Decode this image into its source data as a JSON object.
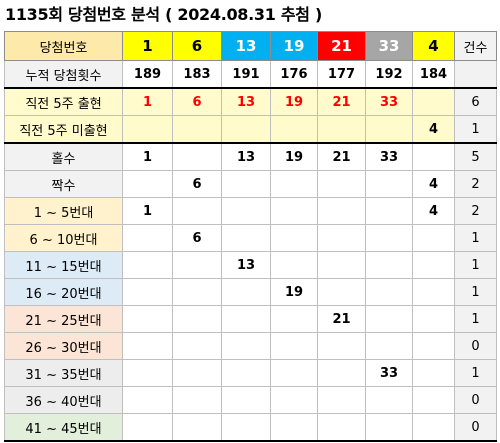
{
  "title": "1135회 당첨번호 분석 ( 2024.08.31 추첨 )",
  "header": {
    "label": "당첨번호",
    "numbers": [
      "1",
      "6",
      "13",
      "19",
      "21",
      "33",
      "4"
    ],
    "count_label": "건수"
  },
  "cumulative": {
    "label": "누적 당첨횟수",
    "values": [
      "189",
      "183",
      "191",
      "176",
      "177",
      "192",
      "184"
    ]
  },
  "rows": [
    {
      "label": "직전 5주 출현",
      "cells": [
        "1",
        "6",
        "13",
        "19",
        "21",
        "33",
        ""
      ],
      "count": "6"
    },
    {
      "label": "직전 5주 미출현",
      "cells": [
        "",
        "",
        "",
        "",
        "",
        "",
        "4"
      ],
      "count": "1"
    },
    {
      "label": "홀수",
      "cells": [
        "1",
        "",
        "13",
        "19",
        "21",
        "33",
        ""
      ],
      "count": "5"
    },
    {
      "label": "짝수",
      "cells": [
        "",
        "6",
        "",
        "",
        "",
        "",
        "4"
      ],
      "count": "2"
    },
    {
      "label": "1 ~ 5번대",
      "cells": [
        "1",
        "",
        "",
        "",
        "",
        "",
        "4"
      ],
      "count": "2"
    },
    {
      "label": "6 ~ 10번대",
      "cells": [
        "",
        "6",
        "",
        "",
        "",
        "",
        ""
      ],
      "count": "1"
    },
    {
      "label": "11 ~ 15번대",
      "cells": [
        "",
        "",
        "13",
        "",
        "",
        "",
        ""
      ],
      "count": "1"
    },
    {
      "label": "16 ~ 20번대",
      "cells": [
        "",
        "",
        "",
        "19",
        "",
        "",
        ""
      ],
      "count": "1"
    },
    {
      "label": "21 ~ 25번대",
      "cells": [
        "",
        "",
        "",
        "",
        "21",
        "",
        ""
      ],
      "count": "1"
    },
    {
      "label": "26 ~ 30번대",
      "cells": [
        "",
        "",
        "",
        "",
        "",
        "",
        ""
      ],
      "count": "0"
    },
    {
      "label": "31 ~ 35번대",
      "cells": [
        "",
        "",
        "",
        "",
        "",
        "33",
        ""
      ],
      "count": "1"
    },
    {
      "label": "36 ~ 40번대",
      "cells": [
        "",
        "",
        "",
        "",
        "",
        "",
        ""
      ],
      "count": "0"
    },
    {
      "label": "41 ~ 45번대",
      "cells": [
        "",
        "",
        "",
        "",
        "",
        "",
        ""
      ],
      "count": "0"
    }
  ],
  "colors": {
    "header_label_bg": "#fde9a9",
    "ball_1_10_bg": "#ffff00",
    "ball_11_20_bg": "#00b0f0",
    "ball_21_30_bg": "#ff0000",
    "ball_31_40_bg": "#a6a6a6",
    "recent_bg": "#fffbcc",
    "range_1_10_bg": "#fff2cc",
    "range_11_20_bg": "#ddebf7",
    "range_21_30_bg": "#fce4d6",
    "range_31_40_bg": "#ededed",
    "range_41_45_bg": "#e2efda",
    "count_bg": "#f2f2f2",
    "highlight_text": "#ff0000"
  }
}
